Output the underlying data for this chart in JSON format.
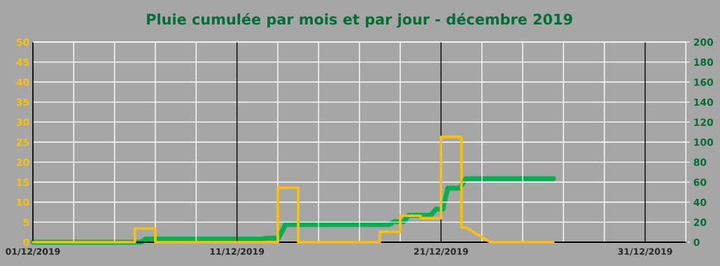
{
  "chart_data": {
    "type": "line",
    "title": "Pluie cumulée par mois et par jour - décembre 2019",
    "xlim": [
      "2019-12-01",
      "2020-01-02"
    ],
    "xticks": [
      {
        "value": "2019-12-01",
        "label": "01/12/2019"
      },
      {
        "value": "2019-12-03",
        "label": null
      },
      {
        "value": "2019-12-05",
        "label": null
      },
      {
        "value": "2019-12-07",
        "label": null
      },
      {
        "value": "2019-12-09",
        "label": null
      },
      {
        "value": "2019-12-11",
        "label": "11/12/2019"
      },
      {
        "value": "2019-12-13",
        "label": null
      },
      {
        "value": "2019-12-15",
        "label": null
      },
      {
        "value": "2019-12-17",
        "label": null
      },
      {
        "value": "2019-12-19",
        "label": null
      },
      {
        "value": "2019-12-21",
        "label": "21/12/2019"
      },
      {
        "value": "2019-12-23",
        "label": null
      },
      {
        "value": "2019-12-25",
        "label": null
      },
      {
        "value": "2019-12-27",
        "label": null
      },
      {
        "value": "2019-12-29",
        "label": null
      },
      {
        "value": "2019-12-31",
        "label": "31/12/2019"
      }
    ],
    "ylim": [
      0,
      50
    ],
    "yticks": [
      0,
      5,
      10,
      15,
      20,
      25,
      30,
      35,
      40,
      45,
      50
    ],
    "y2lim": [
      0,
      200
    ],
    "y2ticks": [
      0,
      20,
      40,
      60,
      80,
      100,
      120,
      140,
      160,
      180,
      200
    ],
    "grid": true,
    "legend": false,
    "series": [
      {
        "type": "line",
        "axis": "y",
        "color": "#ffc000",
        "x": [
          "2019-12-01T00:00",
          "2019-12-06T00:00",
          "2019-12-06T00:00",
          "2019-12-07T00:00",
          "2019-12-07T00:00",
          "2019-12-13T00:00",
          "2019-12-13T00:00",
          "2019-12-14T00:00",
          "2019-12-14T00:00",
          "2019-12-18T00:00",
          "2019-12-18T00:00",
          "2019-12-19T00:00",
          "2019-12-19T00:00",
          "2019-12-20T00:00",
          "2019-12-20T00:00",
          "2019-12-21T00:00",
          "2019-12-21T00:00",
          "2019-12-22T00:00",
          "2019-12-22T00:00",
          "2019-12-22T05:00",
          "2019-12-23T10:00",
          "2019-12-26T12:00"
        ],
        "values": [
          0,
          0,
          3.4,
          3.4,
          0,
          0,
          13.6,
          13.6,
          0,
          0,
          2.6,
          2.6,
          6.6,
          6.6,
          6.0,
          6.0,
          26.3,
          26.3,
          3.7,
          3.7,
          0,
          0
        ]
      },
      {
        "type": "line",
        "axis": "y2",
        "color": "#00b050",
        "x": [
          "2019-12-01T00:00",
          "2019-12-06T08:00",
          "2019-12-06T12:00",
          "2019-12-12T06:00",
          "2019-12-12T10:00",
          "2019-12-13T01:00",
          "2019-12-13T09:00",
          "2019-12-18T11:00",
          "2019-12-18T17:00",
          "2019-12-19T04:00",
          "2019-12-19T10:00",
          "2019-12-20T12:00",
          "2019-12-20T18:00",
          "2019-12-21T02:00",
          "2019-12-21T08:00",
          "2019-12-21T22:00",
          "2019-12-22T05:00",
          "2019-12-26T12:00"
        ],
        "values": [
          0,
          0,
          3.2,
          3.2,
          4.0,
          4.0,
          17.6,
          17.6,
          20.5,
          20.5,
          26.9,
          26.9,
          33,
          33,
          54,
          54,
          63.4,
          63.4
        ]
      }
    ]
  }
}
